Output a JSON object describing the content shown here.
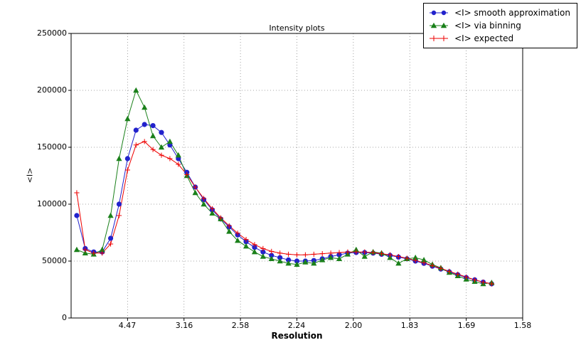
{
  "chart_data": {
    "type": "line",
    "title": "Intensity plots",
    "xlabel": "Resolution",
    "ylabel": "<I>",
    "grid": true,
    "grid_style": "dotted",
    "legend_position": "top-right",
    "x_axis": {
      "min": 0,
      "max": 0.4,
      "unit": "1/d^2 (resolution shown in Angstrom)",
      "tick_positions": [
        0.05,
        0.1,
        0.15,
        0.2,
        0.25,
        0.3,
        0.35,
        0.4
      ],
      "tick_labels": [
        "4.47",
        "3.16",
        "2.58",
        "2.24",
        "2.00",
        "1.83",
        "1.69",
        "1.58"
      ]
    },
    "y_axis": {
      "min": 0,
      "max": 250000,
      "tick_positions": [
        0,
        50000,
        100000,
        150000,
        200000,
        250000
      ],
      "tick_labels": [
        "0",
        "50000",
        "100000",
        "150000",
        "200000",
        "250000"
      ]
    },
    "x": [
      0.005,
      0.0125,
      0.02,
      0.0275,
      0.035,
      0.0425,
      0.05,
      0.0575,
      0.065,
      0.0725,
      0.08,
      0.0875,
      0.095,
      0.1025,
      0.11,
      0.1175,
      0.125,
      0.1325,
      0.14,
      0.1475,
      0.155,
      0.1625,
      0.17,
      0.1775,
      0.185,
      0.1925,
      0.2,
      0.2075,
      0.215,
      0.2225,
      0.23,
      0.2375,
      0.245,
      0.2525,
      0.26,
      0.2675,
      0.275,
      0.2825,
      0.29,
      0.2975,
      0.305,
      0.3125,
      0.32,
      0.3275,
      0.335,
      0.3425,
      0.35,
      0.3575,
      0.365,
      0.3725
    ],
    "series": [
      {
        "name": "<I> smooth approximation",
        "color": "#2222cc",
        "marker": "circle",
        "values": [
          90000,
          61000,
          58000,
          58000,
          70000,
          100000,
          140000,
          165000,
          170000,
          169000,
          163000,
          152000,
          140000,
          128000,
          115000,
          104000,
          95000,
          87000,
          80000,
          73000,
          67000,
          62000,
          58000,
          55000,
          53000,
          51000,
          50000,
          50000,
          50500,
          52000,
          54000,
          55500,
          57000,
          57500,
          57500,
          57000,
          56000,
          55000,
          53500,
          52000,
          50000,
          48000,
          45500,
          43000,
          40500,
          38000,
          35500,
          33500,
          31500,
          30000
        ]
      },
      {
        "name": "<I> via binning",
        "color": "#1a801a",
        "marker": "triangle",
        "values": [
          60000,
          57000,
          56000,
          60000,
          90000,
          140000,
          175000,
          200000,
          185000,
          160000,
          150000,
          155000,
          143000,
          125000,
          110000,
          100000,
          92000,
          87000,
          76000,
          68000,
          63000,
          58000,
          54000,
          52000,
          50000,
          48000,
          47000,
          49000,
          48000,
          51000,
          53000,
          52000,
          56000,
          60000,
          54000,
          58000,
          57000,
          53000,
          48000,
          52000,
          53000,
          51000,
          47000,
          44000,
          40000,
          37000,
          34000,
          32000,
          30000,
          31000
        ]
      },
      {
        "name": "<I> expected",
        "color": "#ee0000",
        "marker": "plus",
        "values": [
          110000,
          60000,
          57000,
          57000,
          65000,
          90000,
          130000,
          152000,
          155000,
          148000,
          143000,
          140000,
          135000,
          126000,
          115000,
          105000,
          96000,
          88000,
          81000,
          74500,
          69000,
          64500,
          61000,
          58500,
          57000,
          56000,
          55500,
          55500,
          56000,
          56500,
          57000,
          57500,
          58000,
          58000,
          58000,
          57500,
          56500,
          55500,
          54000,
          52500,
          50500,
          48500,
          46000,
          43500,
          41000,
          38500,
          36000,
          33500,
          31500,
          30000
        ]
      }
    ]
  }
}
